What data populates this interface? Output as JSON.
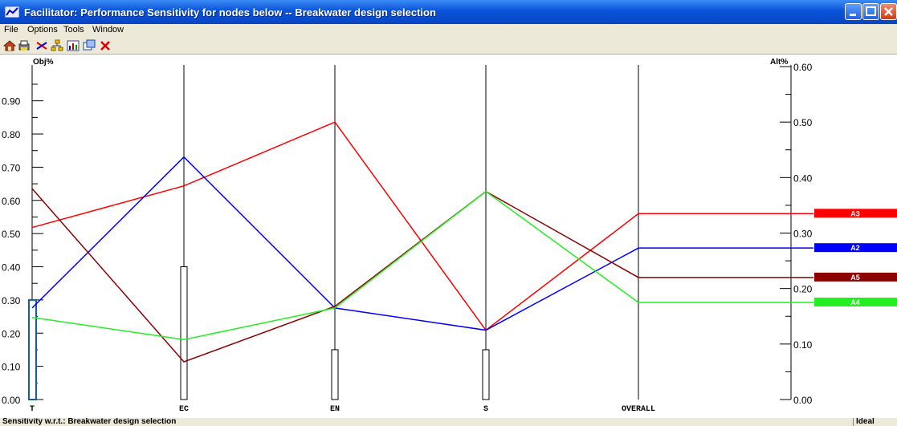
{
  "window": {
    "title": "Facilitator: Performance Sensitivity for nodes below -- Breakwater design selection"
  },
  "menu": [
    "File",
    "Options",
    "Tools",
    "Window"
  ],
  "toolbar_icons": [
    "home-icon",
    "print-icon",
    "sensitivity-icon",
    "tree-icon",
    "chart-icon",
    "window-icon",
    "close-x-icon"
  ],
  "status": {
    "left": "Sensitivity w.r.t.: Breakwater design selection",
    "right": "Ideal Mode"
  },
  "chart_data": {
    "type": "line",
    "left_axis_label": "Obj%",
    "right_axis_label": "Alt%",
    "left_ticks": [
      "0.00",
      "0.10",
      "0.20",
      "0.30",
      "0.40",
      "0.50",
      "0.60",
      "0.70",
      "0.80",
      "0.90"
    ],
    "right_ticks": [
      "0.00",
      "0.10",
      "0.20",
      "0.30",
      "0.40",
      "0.50",
      "0.60"
    ],
    "left_range": [
      0,
      1.0
    ],
    "right_range": [
      0,
      0.6
    ],
    "categories": [
      "T",
      "EC",
      "EN",
      "S",
      "OVERALL"
    ],
    "objective_weights": [
      0.3,
      0.4,
      0.15,
      0.15
    ],
    "series": [
      {
        "name": "A3",
        "color": "#ff0000",
        "values": [
          0.31,
          0.385,
          0.5,
          0.125,
          0.335
        ]
      },
      {
        "name": "A2",
        "color": "#0000ff",
        "values": [
          0.165,
          0.437,
          0.165,
          0.125,
          0.273
        ]
      },
      {
        "name": "A5",
        "color": "#8b0000",
        "values": [
          0.38,
          0.068,
          0.168,
          0.375,
          0.22
        ]
      },
      {
        "name": "A4",
        "color": "#22ee22",
        "values": [
          0.148,
          0.108,
          0.165,
          0.375,
          0.175
        ]
      }
    ]
  }
}
